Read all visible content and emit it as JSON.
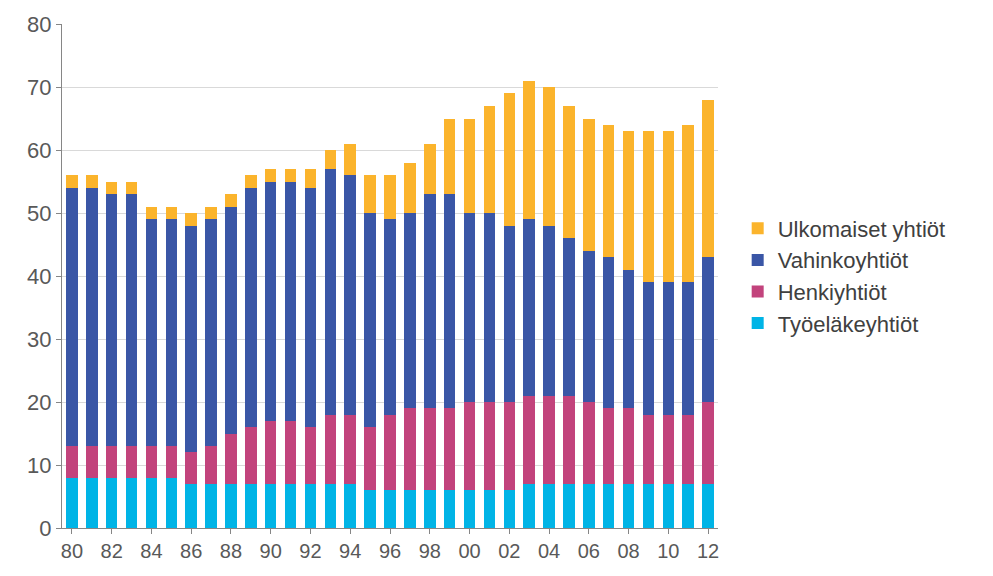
{
  "chart_data": {
    "type": "bar",
    "stacked": true,
    "grid": true,
    "legend": "right",
    "categories": [
      "80",
      null,
      "82",
      null,
      "84",
      null,
      "86",
      null,
      "88",
      null,
      "90",
      null,
      "92",
      null,
      "94",
      null,
      "96",
      null,
      "98",
      null,
      "00",
      null,
      "02",
      null,
      "04",
      null,
      "06",
      null,
      "08",
      null,
      "10",
      null,
      "12"
    ],
    "ylim": [
      0,
      80
    ],
    "yticks": [
      0,
      10,
      20,
      30,
      40,
      50,
      60,
      70,
      80
    ],
    "series": [
      {
        "name": "Työeläkeyhtiöt",
        "color": "#00b4e6",
        "values": [
          8,
          8,
          8,
          8,
          8,
          8,
          7,
          7,
          7,
          7,
          7,
          7,
          7,
          7,
          7,
          6,
          6,
          6,
          6,
          6,
          6,
          6,
          6,
          7,
          7,
          7,
          7,
          7,
          7,
          7,
          7,
          7,
          7
        ]
      },
      {
        "name": "Henkiyhtiöt",
        "color": "#c2437c",
        "values": [
          5,
          5,
          5,
          5,
          5,
          5,
          5,
          6,
          8,
          9,
          10,
          10,
          9,
          11,
          11,
          10,
          12,
          13,
          13,
          13,
          14,
          14,
          14,
          14,
          14,
          14,
          13,
          12,
          12,
          11,
          11,
          11,
          13
        ]
      },
      {
        "name": "Vahinkoyhtiöt",
        "color": "#3a56a6",
        "values": [
          41,
          41,
          40,
          40,
          36,
          36,
          36,
          36,
          36,
          38,
          38,
          38,
          38,
          39,
          38,
          34,
          31,
          31,
          34,
          34,
          30,
          30,
          28,
          28,
          27,
          25,
          24,
          24,
          22,
          21,
          21,
          21,
          23
        ]
      },
      {
        "name": "Ulkomaiset yhtiöt",
        "color": "#fbb42c",
        "values": [
          2,
          2,
          2,
          2,
          2,
          2,
          2,
          2,
          2,
          2,
          2,
          2,
          3,
          3,
          5,
          6,
          7,
          8,
          8,
          12,
          15,
          17,
          21,
          22,
          22,
          21,
          21,
          21,
          22,
          24,
          24,
          25,
          25
        ]
      }
    ]
  }
}
